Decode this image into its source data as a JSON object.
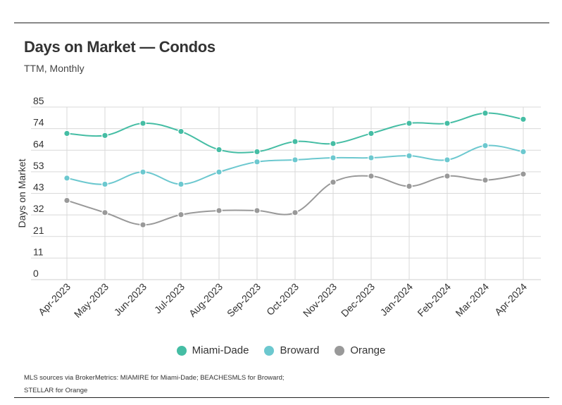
{
  "header": {
    "title": "Days on Market — Condos",
    "subtitle": "TTM, Monthly"
  },
  "footer": {
    "source_line1": "MLS sources via BrokerMetrics: MIAMIRE for Miami-Dade; BEACHESMLS for Broward;",
    "source_line2": "STELLAR for Orange"
  },
  "chart_data": {
    "type": "line",
    "title": "Days on Market — Condos",
    "subtitle": "TTM, Monthly",
    "xlabel": "",
    "ylabel": "Days on Market",
    "ylim": [
      0,
      85
    ],
    "yticks": [
      "0",
      "11",
      "21",
      "32",
      "43",
      "53",
      "64",
      "74",
      "85"
    ],
    "grid": true,
    "legend_position": "bottom",
    "categories": [
      "Apr-2023",
      "May-2023",
      "Jun-2023",
      "Jul-2023",
      "Aug-2023",
      "Sep-2023",
      "Oct-2023",
      "Nov-2023",
      "Dec-2023",
      "Jan-2024",
      "Feb-2024",
      "Mar-2024",
      "Apr-2024"
    ],
    "series": [
      {
        "name": "Miami-Dade",
        "color": "#45bda4",
        "values": [
          72,
          71,
          77,
          73,
          64,
          63,
          68,
          67,
          72,
          77,
          77,
          82,
          79
        ]
      },
      {
        "name": "Broward",
        "color": "#6cc8cf",
        "values": [
          50,
          47,
          53,
          47,
          53,
          58,
          59,
          60,
          60,
          61,
          59,
          66,
          63
        ]
      },
      {
        "name": "Orange",
        "color": "#999999",
        "values": [
          39,
          33,
          27,
          32,
          34,
          34,
          33,
          48,
          51,
          46,
          51,
          49,
          52
        ]
      }
    ]
  }
}
